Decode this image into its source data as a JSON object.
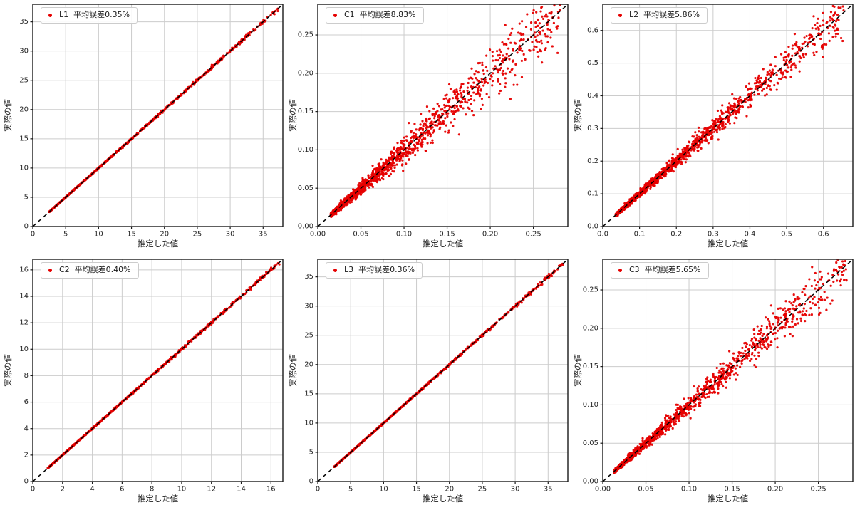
{
  "figure": {
    "background": "#ffffff",
    "style": {
      "dot_color": "#e60000",
      "diagonal_color": "#000000",
      "grid_color": "#cccccc",
      "spine_color": "#1a1a1a",
      "tick_label_color": "#262626",
      "legend_border_color": "#cccccc"
    }
  },
  "chart_data": [
    {
      "type": "scatter",
      "series_label": "L1",
      "legend": "L1  平均誤差0.35%",
      "mean_error_pct": 0.35,
      "xlabel": "推定した値",
      "ylabel": "実際の値",
      "xlim": [
        0,
        38
      ],
      "ylim": [
        0,
        38
      ],
      "xticks": [
        0,
        5,
        10,
        15,
        20,
        25,
        30,
        35
      ],
      "yticks": [
        0,
        5,
        10,
        15,
        20,
        25,
        30,
        35
      ],
      "tick_decimals": 0,
      "grid": true,
      "diagonal": "y=x black dashed",
      "marker": "red-dot",
      "points_model": {
        "n": 1100,
        "x_min": 2.5,
        "x_max": 37.3,
        "x_distribution": "log-uniform",
        "relative_noise_sd_pct": 0.45,
        "seed": 11
      }
    },
    {
      "type": "scatter",
      "series_label": "C1",
      "legend": "C1  平均誤差8.83%",
      "mean_error_pct": 8.83,
      "xlabel": "推定した値",
      "ylabel": "実際の値",
      "xlim": [
        0,
        0.29
      ],
      "ylim": [
        0,
        0.29
      ],
      "xticks": [
        0,
        0.05,
        0.1,
        0.15,
        0.2,
        0.25
      ],
      "yticks": [
        0,
        0.05,
        0.1,
        0.15,
        0.2,
        0.25
      ],
      "tick_decimals": 2,
      "grid": true,
      "diagonal": "y=x black dashed",
      "marker": "red-dot",
      "points_model": {
        "n": 1500,
        "x_min": 0.015,
        "x_max": 0.283,
        "x_distribution": "log-uniform",
        "relative_noise_sd_pct": 8.0,
        "seed": 22
      }
    },
    {
      "type": "scatter",
      "series_label": "L2",
      "legend": "L2  平均誤差5.86%",
      "mean_error_pct": 5.86,
      "xlabel": "推定した値",
      "ylabel": "実際の値",
      "xlim": [
        0,
        0.68
      ],
      "ylim": [
        0,
        0.68
      ],
      "xticks": [
        0,
        0.1,
        0.2,
        0.3,
        0.4,
        0.5,
        0.6
      ],
      "yticks": [
        0,
        0.1,
        0.2,
        0.3,
        0.4,
        0.5,
        0.6
      ],
      "tick_decimals": 1,
      "grid": true,
      "diagonal": "y=x black dashed",
      "marker": "red-dot",
      "points_model": {
        "n": 1500,
        "x_min": 0.035,
        "x_max": 0.655,
        "x_distribution": "log-uniform",
        "relative_noise_sd_pct": 5.0,
        "seed": 33
      }
    },
    {
      "type": "scatter",
      "series_label": "C2",
      "legend": "C2  平均誤差0.40%",
      "mean_error_pct": 0.4,
      "xlabel": "推定した値",
      "ylabel": "実際の値",
      "xlim": [
        0,
        16.8
      ],
      "ylim": [
        0,
        16.8
      ],
      "xticks": [
        0,
        2,
        4,
        6,
        8,
        10,
        12,
        14,
        16
      ],
      "yticks": [
        0,
        2,
        4,
        6,
        8,
        10,
        12,
        14,
        16
      ],
      "tick_decimals": 0,
      "grid": true,
      "diagonal": "y=x black dashed",
      "marker": "red-dot",
      "points_model": {
        "n": 1100,
        "x_min": 1.0,
        "x_max": 16.6,
        "x_distribution": "log-uniform",
        "relative_noise_sd_pct": 0.5,
        "seed": 44
      }
    },
    {
      "type": "scatter",
      "series_label": "L3",
      "legend": "L3  平均誤差0.36%",
      "mean_error_pct": 0.36,
      "xlabel": "推定した値",
      "ylabel": "実際の値",
      "xlim": [
        0,
        38
      ],
      "ylim": [
        0,
        38
      ],
      "xticks": [
        0,
        5,
        10,
        15,
        20,
        25,
        30,
        35
      ],
      "yticks": [
        0,
        5,
        10,
        15,
        20,
        25,
        30,
        35
      ],
      "tick_decimals": 0,
      "grid": true,
      "diagonal": "y=x black dashed",
      "marker": "red-dot",
      "points_model": {
        "n": 1100,
        "x_min": 2.5,
        "x_max": 37.3,
        "x_distribution": "log-uniform",
        "relative_noise_sd_pct": 0.45,
        "seed": 55
      }
    },
    {
      "type": "scatter",
      "series_label": "C3",
      "legend": "C3  平均誤差5.65%",
      "mean_error_pct": 5.65,
      "xlabel": "推定した値",
      "ylabel": "実際の値",
      "xlim": [
        0,
        0.29
      ],
      "ylim": [
        0,
        0.29
      ],
      "xticks": [
        0,
        0.05,
        0.1,
        0.15,
        0.2,
        0.25
      ],
      "yticks": [
        0,
        0.05,
        0.1,
        0.15,
        0.2,
        0.25
      ],
      "tick_decimals": 2,
      "grid": true,
      "diagonal": "y=x black dashed",
      "marker": "red-dot",
      "points_model": {
        "n": 1500,
        "x_min": 0.013,
        "x_max": 0.285,
        "x_distribution": "log-uniform",
        "relative_noise_sd_pct": 6.0,
        "seed": 66
      }
    }
  ]
}
